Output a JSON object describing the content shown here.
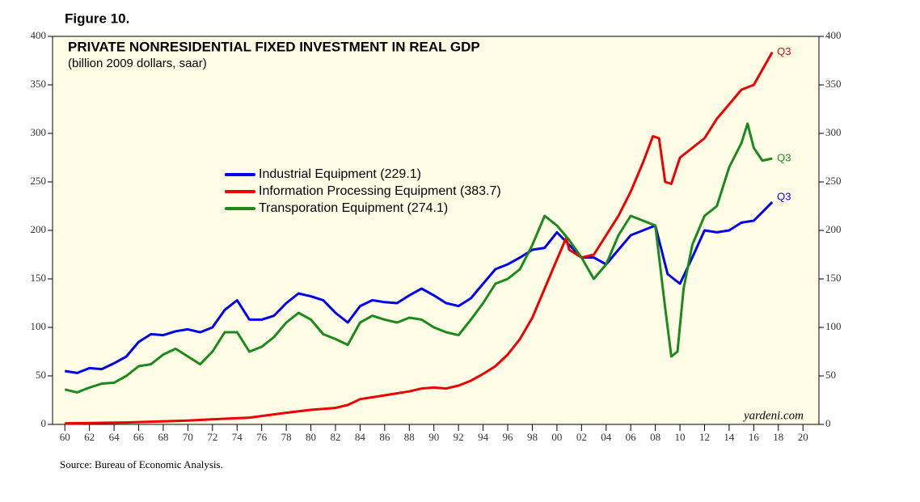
{
  "figure_label": "Figure 10.",
  "chart_data": {
    "type": "line",
    "title": "PRIVATE NONRESIDENTIAL FIXED INVESTMENT IN REAL GDP",
    "subtitle": "(billion 2009 dollars, saar)",
    "source": "Source: Bureau of Economic Analysis.",
    "watermark": "yardeni.com",
    "xlim": [
      1959,
      2021.3
    ],
    "ylim": [
      0,
      400
    ],
    "yticks": [
      0,
      50,
      100,
      150,
      200,
      250,
      300,
      350,
      400
    ],
    "xticks": [
      {
        "value": 1960,
        "label": "60"
      },
      {
        "value": 1962,
        "label": "62"
      },
      {
        "value": 1964,
        "label": "64"
      },
      {
        "value": 1966,
        "label": "66"
      },
      {
        "value": 1968,
        "label": "68"
      },
      {
        "value": 1970,
        "label": "70"
      },
      {
        "value": 1972,
        "label": "72"
      },
      {
        "value": 1974,
        "label": "74"
      },
      {
        "value": 1976,
        "label": "76"
      },
      {
        "value": 1978,
        "label": "78"
      },
      {
        "value": 1980,
        "label": "80"
      },
      {
        "value": 1982,
        "label": "82"
      },
      {
        "value": 1984,
        "label": "84"
      },
      {
        "value": 1986,
        "label": "86"
      },
      {
        "value": 1988,
        "label": "88"
      },
      {
        "value": 1990,
        "label": "90"
      },
      {
        "value": 1992,
        "label": "92"
      },
      {
        "value": 1994,
        "label": "94"
      },
      {
        "value": 1996,
        "label": "96"
      },
      {
        "value": 1998,
        "label": "98"
      },
      {
        "value": 2000,
        "label": "00"
      },
      {
        "value": 2002,
        "label": "02"
      },
      {
        "value": 2004,
        "label": "04"
      },
      {
        "value": 2006,
        "label": "06"
      },
      {
        "value": 2008,
        "label": "08"
      },
      {
        "value": 2010,
        "label": "10"
      },
      {
        "value": 2012,
        "label": "12"
      },
      {
        "value": 2014,
        "label": "14"
      },
      {
        "value": 2016,
        "label": "16"
      },
      {
        "value": 2018,
        "label": "18"
      },
      {
        "value": 2020,
        "label": "20"
      }
    ],
    "series": [
      {
        "name": "Industrial Equipment (229.1)",
        "color": "#0000ee",
        "end_label": "Q3",
        "x": [
          1960,
          1961,
          1962,
          1963,
          1964,
          1965,
          1966,
          1967,
          1968,
          1969,
          1970,
          1971,
          1972,
          1973,
          1974,
          1975,
          1976,
          1977,
          1978,
          1979,
          1980,
          1981,
          1982,
          1983,
          1984,
          1985,
          1986,
          1987,
          1988,
          1989,
          1990,
          1991,
          1992,
          1993,
          1994,
          1995,
          1996,
          1997,
          1998,
          1999,
          2000,
          2001,
          2002,
          2003,
          2004,
          2005,
          2006,
          2007,
          2008,
          2009,
          2010,
          2011,
          2012,
          2013,
          2014,
          2015,
          2016,
          2017.5
        ],
        "values": [
          55,
          53,
          58,
          57,
          63,
          70,
          85,
          93,
          92,
          96,
          98,
          95,
          100,
          118,
          128,
          108,
          108,
          112,
          125,
          135,
          132,
          128,
          115,
          105,
          122,
          128,
          126,
          125,
          133,
          140,
          133,
          125,
          122,
          130,
          145,
          160,
          165,
          172,
          180,
          182,
          198,
          185,
          172,
          172,
          165,
          180,
          195,
          200,
          205,
          155,
          145,
          172,
          200,
          198,
          200,
          208,
          210,
          229.1
        ]
      },
      {
        "name": "Information Processing Equipment (383.7)",
        "color": "#ee0000",
        "end_label": "Q3",
        "x": [
          1960,
          1965,
          1970,
          1975,
          1978,
          1980,
          1982,
          1983,
          1984,
          1986,
          1988,
          1989,
          1990,
          1991,
          1992,
          1993,
          1994,
          1995,
          1996,
          1997,
          1998,
          1999,
          2000,
          2000.75,
          2001,
          2002,
          2003,
          2004,
          2005,
          2006,
          2007,
          2007.8,
          2008.3,
          2008.8,
          2009.3,
          2010,
          2011,
          2012,
          2013,
          2014,
          2015,
          2016,
          2017.5
        ],
        "values": [
          1,
          2,
          4,
          7,
          12,
          15,
          17,
          20,
          26,
          30,
          34,
          37,
          38,
          37,
          40,
          45,
          52,
          60,
          72,
          88,
          110,
          140,
          170,
          192,
          180,
          172,
          175,
          195,
          215,
          240,
          270,
          297,
          295,
          250,
          248,
          275,
          285,
          295,
          315,
          330,
          345,
          350,
          383.7
        ]
      },
      {
        "name": "Transporation Equipment (274.1)",
        "color": "#1a8a1a",
        "end_label": "Q3",
        "x": [
          1960,
          1961,
          1962,
          1963,
          1964,
          1965,
          1966,
          1967,
          1968,
          1969,
          1970,
          1971,
          1972,
          1973,
          1974,
          1975,
          1976,
          1977,
          1978,
          1979,
          1980,
          1981,
          1982,
          1983,
          1984,
          1985,
          1986,
          1987,
          1988,
          1989,
          1990,
          1991,
          1992,
          1993,
          1994,
          1995,
          1996,
          1997,
          1998,
          1999,
          2000,
          2001,
          2002,
          2003,
          2004,
          2005,
          2006,
          2007,
          2008,
          2008.8,
          2009.3,
          2009.8,
          2010.3,
          2011,
          2012,
          2013,
          2014,
          2015,
          2015.5,
          2016,
          2016.7,
          2017.5
        ],
        "values": [
          36,
          33,
          38,
          42,
          43,
          50,
          60,
          62,
          72,
          78,
          70,
          62,
          75,
          95,
          95,
          75,
          80,
          90,
          105,
          115,
          108,
          93,
          88,
          82,
          105,
          112,
          108,
          105,
          110,
          108,
          100,
          95,
          92,
          108,
          125,
          145,
          150,
          160,
          185,
          215,
          205,
          190,
          172,
          150,
          165,
          195,
          215,
          210,
          205,
          120,
          70,
          75,
          140,
          185,
          215,
          225,
          265,
          290,
          310,
          285,
          272,
          274.1
        ]
      }
    ]
  }
}
